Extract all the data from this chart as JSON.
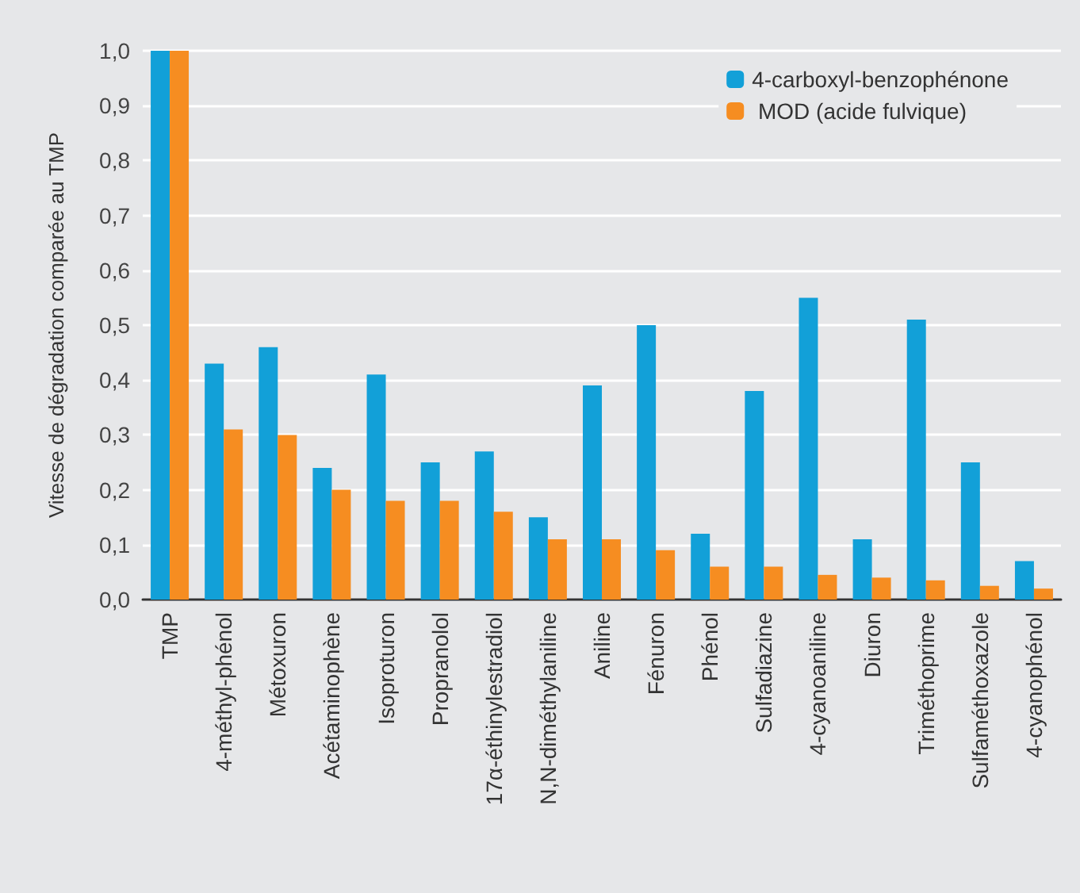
{
  "chart_data": {
    "type": "bar",
    "ylabel": "Vitesse de dégradation comparée au TMP",
    "categories": [
      "TMP",
      "4-méthyl-phénol",
      "Métoxuron",
      "Acétaminophène",
      "Isoproturon",
      "Propranolol",
      "17α-éthinylestradiol",
      "N,N-diméthylaniline",
      "Aniline",
      "Fénuron",
      "Phénol",
      "Sulfadiazine",
      "4-cyanoaniline",
      "Diuron",
      "Triméthoprime",
      "Sulfaméthoxazole",
      "4-cyanophénol"
    ],
    "series": [
      {
        "name": "4-carboxyl-benzophénone",
        "color": "#12a0d8",
        "values": [
          1.0,
          0.43,
          0.46,
          0.24,
          0.41,
          0.25,
          0.27,
          0.15,
          0.39,
          0.5,
          0.12,
          0.38,
          0.55,
          0.11,
          0.51,
          0.25,
          0.07
        ]
      },
      {
        "name": " MOD (acide fulvique)",
        "color": "#f68d21",
        "values": [
          1.0,
          0.31,
          0.3,
          0.2,
          0.18,
          0.18,
          0.16,
          0.11,
          0.11,
          0.09,
          0.06,
          0.06,
          0.045,
          0.04,
          0.035,
          0.025,
          0.02
        ]
      }
    ],
    "ylim": [
      0,
      1
    ],
    "yticks": [
      {
        "value": 0,
        "label": "0,0"
      },
      {
        "value": 0.1,
        "label": "0,1"
      },
      {
        "value": 0.2,
        "label": "0,2"
      },
      {
        "value": 0.3,
        "label": "0,3"
      },
      {
        "value": 0.4,
        "label": "0,4"
      },
      {
        "value": 0.5,
        "label": "0,5"
      },
      {
        "value": 0.6,
        "label": "0,6"
      },
      {
        "value": 0.7,
        "label": "0,7"
      },
      {
        "value": 0.8,
        "label": "0,8"
      },
      {
        "value": 0.9,
        "label": "0,9"
      },
      {
        "value": 1,
        "label": "1,0"
      }
    ],
    "grid": "y",
    "legend": "top right"
  }
}
